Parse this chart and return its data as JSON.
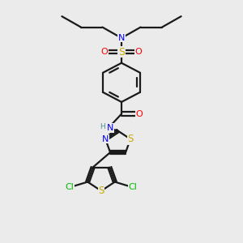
{
  "background_color": "#ebebeb",
  "bond_color": "#1a1a1a",
  "colors": {
    "N": "#0000ff",
    "S": "#ccaa00",
    "O": "#ff0000",
    "Cl": "#00bb00",
    "C": "#1a1a1a",
    "H": "#4a9090"
  },
  "figsize": [
    3.0,
    3.0
  ],
  "dpi": 100
}
